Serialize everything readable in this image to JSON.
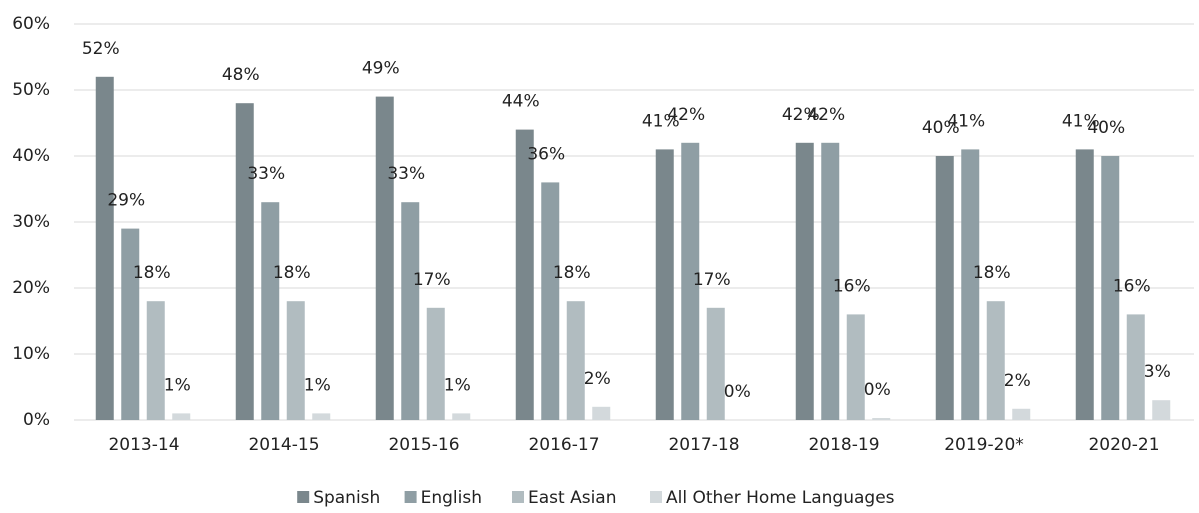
{
  "chart_data": {
    "type": "bar",
    "categories": [
      "2013-14",
      "2014-15",
      "2015-16",
      "2016-17",
      "2017-18",
      "2018-19",
      "2019-20*",
      "2020-21"
    ],
    "series": [
      {
        "name": "Spanish",
        "color": "#7a878c",
        "values": [
          52,
          48,
          49,
          44,
          41,
          42,
          40,
          41
        ],
        "value_labels": [
          "52%",
          "48%",
          "49%",
          "44%",
          "41%",
          "42%",
          "40%",
          "41%"
        ]
      },
      {
        "name": "English",
        "color": "#8f9ea4",
        "values": [
          29,
          33,
          33,
          36,
          42,
          42,
          41,
          40
        ],
        "value_labels": [
          "29%",
          "33%",
          "33%",
          "36%",
          "42%",
          "42%",
          "41%",
          "40%"
        ]
      },
      {
        "name": "East Asian",
        "color": "#b1bcc0",
        "values": [
          18,
          18,
          17,
          18,
          17,
          16,
          18,
          16
        ],
        "value_labels": [
          "18%",
          "18%",
          "17%",
          "18%",
          "17%",
          "16%",
          "18%",
          "16%"
        ]
      },
      {
        "name": "All Other Home Languages",
        "color": "#d3d9dc",
        "values": [
          1,
          1,
          1,
          2,
          0,
          0.3,
          1.7,
          3
        ],
        "value_labels": [
          "1%",
          "1%",
          "1%",
          "2%",
          "0%",
          "0%",
          "2%",
          "3%"
        ]
      }
    ],
    "ylim": [
      0,
      60
    ],
    "yticks": [
      {
        "value": 0,
        "label": "0%"
      },
      {
        "value": 10,
        "label": "10%"
      },
      {
        "value": 20,
        "label": "20%"
      },
      {
        "value": 30,
        "label": "30%"
      },
      {
        "value": 40,
        "label": "40%"
      },
      {
        "value": 50,
        "label": "50%"
      },
      {
        "value": 60,
        "label": "60%"
      }
    ],
    "grid": true,
    "legend": "bottom"
  }
}
